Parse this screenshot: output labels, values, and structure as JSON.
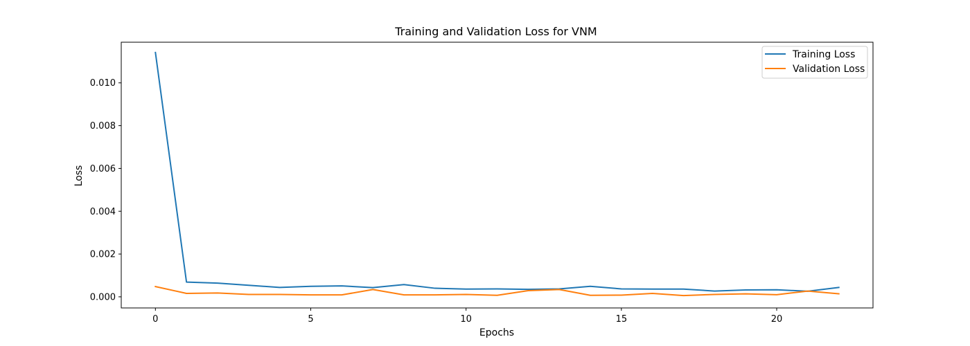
{
  "chart_data": {
    "type": "line",
    "title": "Training and Validation Loss for VNM",
    "xlabel": "Epochs",
    "ylabel": "Loss",
    "xlim": [
      -1.1,
      23.1
    ],
    "ylim": [
      -0.00052,
      0.0119
    ],
    "xticks": [
      0,
      5,
      10,
      15,
      20
    ],
    "xtick_labels": [
      "0",
      "5",
      "10",
      "15",
      "20"
    ],
    "yticks": [
      0.0,
      0.002,
      0.004,
      0.006,
      0.008,
      0.01
    ],
    "ytick_labels": [
      "0.000",
      "0.002",
      "0.004",
      "0.006",
      "0.008",
      "0.010"
    ],
    "grid": false,
    "legend_position": "top-right",
    "x": [
      0,
      1,
      2,
      3,
      4,
      5,
      6,
      7,
      8,
      9,
      10,
      11,
      12,
      13,
      14,
      15,
      16,
      17,
      18,
      19,
      20,
      21,
      22
    ],
    "series": [
      {
        "name": "Training Loss",
        "color": "#1f77b4",
        "values": [
          0.01142,
          0.00069,
          0.00064,
          0.00054,
          0.00044,
          0.00049,
          0.00051,
          0.00043,
          0.00057,
          0.0004,
          0.00036,
          0.00037,
          0.00035,
          0.00037,
          0.00049,
          0.00037,
          0.00036,
          0.00036,
          0.00027,
          0.00032,
          0.00033,
          0.00026,
          0.00044
        ]
      },
      {
        "name": "Validation Loss",
        "color": "#ff7f0e",
        "values": [
          0.00048,
          0.00016,
          0.00018,
          0.00011,
          0.00011,
          9e-05,
          9e-05,
          0.00034,
          9e-05,
          9e-05,
          0.00011,
          7e-05,
          0.00029,
          0.00034,
          7e-05,
          8e-05,
          0.00016,
          6e-05,
          0.00011,
          0.00014,
          0.0001,
          0.00027,
          0.00014
        ]
      }
    ]
  }
}
